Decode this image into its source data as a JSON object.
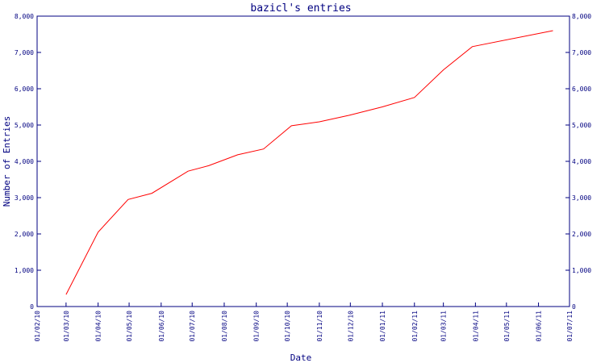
{
  "chart_data": {
    "type": "line",
    "title": "bazicl's entries",
    "xlabel": "Date",
    "ylabel": "Number of Entries",
    "ylim": [
      0,
      8000
    ],
    "y_ticks": [
      {
        "value": 0,
        "label": "0"
      },
      {
        "value": 1000,
        "label": "1,000"
      },
      {
        "value": 2000,
        "label": "2,000"
      },
      {
        "value": 3000,
        "label": "3,000"
      },
      {
        "value": 4000,
        "label": "4,000"
      },
      {
        "value": 5000,
        "label": "5,000"
      },
      {
        "value": 6000,
        "label": "6,000"
      },
      {
        "value": 7000,
        "label": "7,000"
      },
      {
        "value": 8000,
        "label": "8,000"
      }
    ],
    "x_ticks": [
      "01/02/10",
      "01/03/10",
      "01/04/10",
      "01/05/10",
      "01/06/10",
      "01/07/10",
      "01/08/10",
      "01/09/10",
      "01/10/10",
      "01/11/10",
      "01/12/10",
      "01/01/11",
      "01/02/11",
      "01/03/11",
      "01/04/11",
      "01/05/11",
      "01/06/11",
      "01/07/11"
    ],
    "x": [
      "2010-03-01",
      "2010-04-01",
      "2010-04-30",
      "2010-05-23",
      "2010-06-27",
      "2010-07-17",
      "2010-08-14",
      "2010-09-08",
      "2010-10-05",
      "2010-11-01",
      "2010-11-30",
      "2011-01-01",
      "2011-02-01",
      "2011-03-01",
      "2011-03-29",
      "2011-06-15"
    ],
    "series": [
      {
        "color": "#ff0000",
        "values": [
          330,
          2050,
          2950,
          3120,
          3730,
          3880,
          4180,
          4340,
          4980,
          5090,
          5270,
          5500,
          5760,
          6520,
          7160,
          7600
        ]
      }
    ],
    "colors": {
      "axis": "#000080",
      "text": "#000080",
      "line": "#ff0000"
    }
  }
}
